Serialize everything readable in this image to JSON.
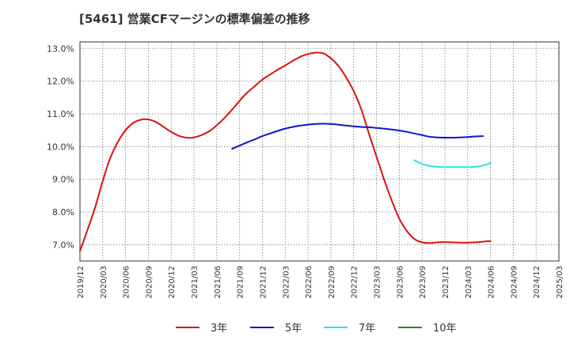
{
  "chart_data": {
    "type": "line",
    "title": "[5461]  営業CFマージンの標準偏差の推移",
    "xlabel": "",
    "ylabel": "",
    "ylim": [
      6.5,
      13.2
    ],
    "yticks": [
      7.0,
      8.0,
      9.0,
      10.0,
      11.0,
      12.0,
      13.0
    ],
    "ytick_labels": [
      "7.0%",
      "8.0%",
      "9.0%",
      "10.0%",
      "11.0%",
      "12.0%",
      "13.0%"
    ],
    "x_categories": [
      "2019/12",
      "2020/03",
      "2020/06",
      "2020/09",
      "2020/12",
      "2021/03",
      "2021/06",
      "2021/09",
      "2021/12",
      "2022/03",
      "2022/06",
      "2022/09",
      "2022/12",
      "2023/03",
      "2023/06",
      "2023/09",
      "2023/12",
      "2024/03",
      "2024/06",
      "2024/09",
      "2024/12",
      "2025/03"
    ],
    "grid": true,
    "legend_position": "bottom",
    "series": [
      {
        "name": "3年",
        "color": "#dd1111",
        "points": [
          [
            0,
            6.8
          ],
          [
            0.33,
            7.45
          ],
          [
            0.67,
            8.15
          ],
          [
            1,
            8.95
          ],
          [
            1.33,
            9.65
          ],
          [
            1.67,
            10.15
          ],
          [
            2,
            10.5
          ],
          [
            2.33,
            10.72
          ],
          [
            2.67,
            10.82
          ],
          [
            3,
            10.83
          ],
          [
            3.33,
            10.75
          ],
          [
            3.67,
            10.6
          ],
          [
            4,
            10.45
          ],
          [
            4.33,
            10.33
          ],
          [
            4.67,
            10.27
          ],
          [
            5,
            10.28
          ],
          [
            5.33,
            10.35
          ],
          [
            5.67,
            10.47
          ],
          [
            6,
            10.65
          ],
          [
            6.33,
            10.87
          ],
          [
            6.67,
            11.13
          ],
          [
            7,
            11.4
          ],
          [
            7.33,
            11.65
          ],
          [
            7.67,
            11.85
          ],
          [
            8,
            12.05
          ],
          [
            8.33,
            12.2
          ],
          [
            8.67,
            12.35
          ],
          [
            9,
            12.48
          ],
          [
            9.33,
            12.62
          ],
          [
            9.67,
            12.75
          ],
          [
            10,
            12.83
          ],
          [
            10.33,
            12.87
          ],
          [
            10.67,
            12.85
          ],
          [
            11,
            12.7
          ],
          [
            11.33,
            12.47
          ],
          [
            11.67,
            12.12
          ],
          [
            12,
            11.7
          ],
          [
            12.33,
            11.15
          ],
          [
            12.67,
            10.4
          ],
          [
            13,
            9.7
          ],
          [
            13.33,
            9.0
          ],
          [
            13.67,
            8.35
          ],
          [
            14,
            7.8
          ],
          [
            14.33,
            7.42
          ],
          [
            14.67,
            7.17
          ],
          [
            15,
            7.07
          ],
          [
            15.33,
            7.05
          ],
          [
            15.67,
            7.07
          ],
          [
            16,
            7.08
          ],
          [
            16.33,
            7.07
          ],
          [
            16.67,
            7.06
          ],
          [
            17,
            7.06
          ],
          [
            17.33,
            7.07
          ],
          [
            17.67,
            7.09
          ],
          [
            18,
            7.11
          ]
        ]
      },
      {
        "name": "5年",
        "color": "#1111cc",
        "points": [
          [
            6.67,
            9.93
          ],
          [
            7,
            10.03
          ],
          [
            7.33,
            10.13
          ],
          [
            7.67,
            10.22
          ],
          [
            8,
            10.32
          ],
          [
            8.33,
            10.4
          ],
          [
            8.67,
            10.48
          ],
          [
            9,
            10.55
          ],
          [
            9.33,
            10.6
          ],
          [
            9.67,
            10.64
          ],
          [
            10,
            10.67
          ],
          [
            10.33,
            10.69
          ],
          [
            10.67,
            10.7
          ],
          [
            11,
            10.69
          ],
          [
            11.33,
            10.67
          ],
          [
            11.67,
            10.64
          ],
          [
            12,
            10.62
          ],
          [
            12.33,
            10.6
          ],
          [
            12.67,
            10.59
          ],
          [
            13,
            10.57
          ],
          [
            13.33,
            10.55
          ],
          [
            13.67,
            10.52
          ],
          [
            14,
            10.49
          ],
          [
            14.33,
            10.45
          ],
          [
            14.67,
            10.4
          ],
          [
            15,
            10.35
          ],
          [
            15.33,
            10.3
          ],
          [
            15.67,
            10.28
          ],
          [
            16,
            10.27
          ],
          [
            16.33,
            10.27
          ],
          [
            16.67,
            10.28
          ],
          [
            17,
            10.29
          ],
          [
            17.33,
            10.31
          ],
          [
            17.67,
            10.32
          ]
        ]
      },
      {
        "name": "7年",
        "color": "#22e5ee",
        "points": [
          [
            14.67,
            9.58
          ],
          [
            15,
            9.47
          ],
          [
            15.33,
            9.41
          ],
          [
            15.67,
            9.38
          ],
          [
            16,
            9.37
          ],
          [
            16.33,
            9.37
          ],
          [
            16.67,
            9.37
          ],
          [
            17,
            9.37
          ],
          [
            17.33,
            9.38
          ],
          [
            17.67,
            9.42
          ],
          [
            18,
            9.5
          ]
        ]
      },
      {
        "name": "10年",
        "color": "#228822",
        "points": []
      }
    ]
  }
}
